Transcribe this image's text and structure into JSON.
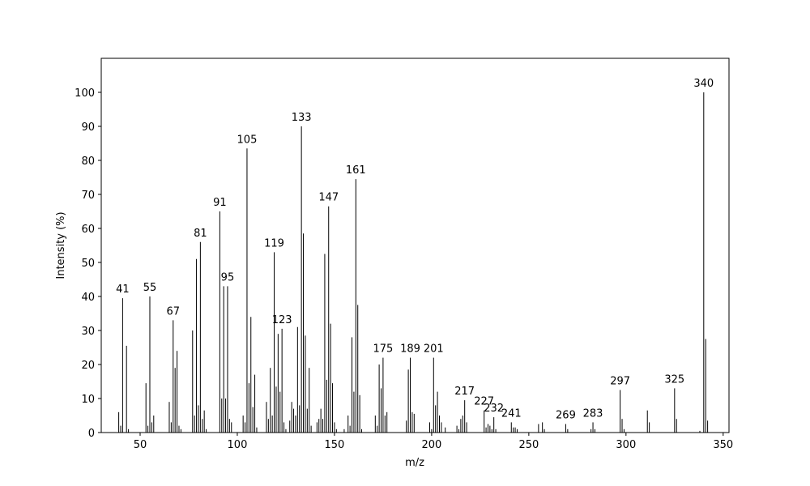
{
  "chart_data": {
    "type": "stick",
    "xlabel": "m/z",
    "ylabel": "Intensity (%)",
    "color": "#000000",
    "xlim": [
      30,
      353
    ],
    "ylim": [
      0,
      110
    ],
    "xticks": [
      50,
      100,
      150,
      200,
      250,
      300,
      350
    ],
    "yticks": [
      0,
      10,
      20,
      30,
      40,
      50,
      60,
      70,
      80,
      90,
      100
    ],
    "grid": false,
    "x": [
      39,
      40,
      41,
      43,
      44,
      53,
      54,
      55,
      56,
      57,
      65,
      66,
      67,
      68,
      69,
      70,
      71,
      77,
      78,
      79,
      80,
      81,
      82,
      83,
      84,
      91,
      92,
      93,
      94,
      95,
      96,
      97,
      103,
      104,
      105,
      106,
      107,
      108,
      109,
      110,
      115,
      116,
      117,
      118,
      119,
      120,
      121,
      122,
      123,
      124,
      125,
      127,
      128,
      129,
      130,
      131,
      132,
      133,
      134,
      135,
      136,
      137,
      138,
      141,
      142,
      143,
      144,
      145,
      146,
      147,
      148,
      149,
      150,
      151,
      155,
      157,
      158,
      159,
      160,
      161,
      162,
      163,
      164,
      171,
      172,
      173,
      174,
      175,
      176,
      177,
      187,
      188,
      189,
      190,
      191,
      199,
      200,
      201,
      202,
      203,
      204,
      205,
      207,
      213,
      214,
      215,
      216,
      217,
      218,
      227,
      228,
      229,
      230,
      231,
      232,
      233,
      241,
      242,
      243,
      244,
      255,
      257,
      258,
      269,
      270,
      282,
      283,
      284,
      297,
      298,
      299,
      311,
      312,
      325,
      326,
      338,
      340,
      341,
      342
    ],
    "values": [
      6,
      2,
      39.5,
      25.5,
      1,
      14.5,
      2,
      40,
      3,
      5,
      9,
      3,
      33,
      19,
      24,
      2,
      1,
      30,
      5,
      51,
      8,
      56,
      4,
      6.5,
      1,
      65,
      10,
      43,
      10,
      43,
      4,
      3,
      5,
      3,
      83.5,
      14.5,
      34,
      7.5,
      17,
      1.5,
      9,
      4,
      19,
      5,
      53,
      13.5,
      29,
      12,
      30.5,
      3,
      1,
      3.5,
      9,
      7,
      5,
      31,
      8,
      90,
      58.5,
      28.5,
      7,
      19,
      2,
      3,
      4,
      7,
      4,
      52.5,
      15.5,
      66.5,
      32,
      14.5,
      3,
      1,
      1,
      5,
      2,
      28,
      12,
      74.5,
      37.5,
      11,
      1,
      5,
      2,
      20,
      13,
      22,
      5,
      6,
      3.5,
      18.5,
      22,
      6,
      5.5,
      3,
      1,
      22,
      8,
      12,
      5,
      3,
      1.5,
      2,
      1,
      4,
      5,
      9.5,
      3,
      6.5,
      1.5,
      2.5,
      2,
      1,
      4.5,
      1,
      3,
      1.5,
      1.5,
      1,
      2.5,
      3,
      1,
      2.5,
      1,
      1,
      3,
      1,
      12.5,
      4,
      1,
      6.5,
      3,
      13,
      4,
      0.5,
      100,
      27.5,
      3.5
    ],
    "annotations": [
      41,
      55,
      67,
      81,
      91,
      95,
      105,
      119,
      123,
      133,
      147,
      161,
      175,
      189,
      201,
      217,
      227,
      232,
      241,
      269,
      283,
      297,
      325,
      340
    ]
  }
}
